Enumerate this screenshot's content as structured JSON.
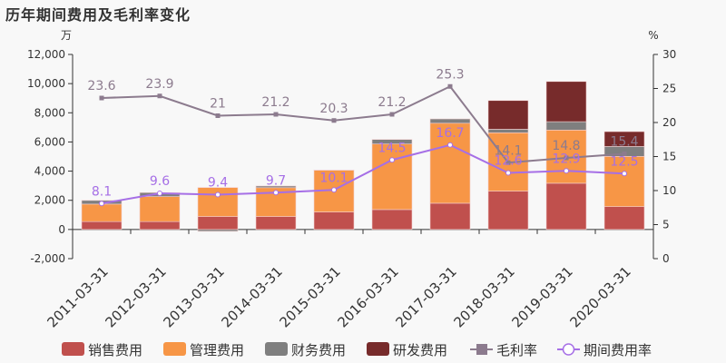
{
  "title": "历年期间费用及毛利率变化",
  "chart_data": {
    "type": "bar",
    "stacked": true,
    "categories": [
      "2011-03-31",
      "2012-03-31",
      "2013-03-31",
      "2014-03-31",
      "2015-03-31",
      "2016-03-31",
      "2017-03-31",
      "2018-03-31",
      "2019-03-31",
      "2020-03-31"
    ],
    "left_axis": {
      "unit": "万",
      "ylim": [
        -2000,
        12000
      ],
      "ticks": [
        "-2,000",
        "0",
        "2,000",
        "4,000",
        "6,000",
        "8,000",
        "10,000",
        "12,000"
      ],
      "tick_values": [
        -2000,
        0,
        2000,
        4000,
        6000,
        8000,
        10000,
        12000
      ]
    },
    "right_axis": {
      "unit": "%",
      "ylim": [
        0,
        30
      ],
      "ticks": [
        "0",
        "5",
        "10",
        "15",
        "20",
        "25",
        "30"
      ],
      "tick_values": [
        0,
        5,
        10,
        15,
        20,
        25,
        30
      ]
    },
    "series": [
      {
        "name": "销售费用",
        "type": "bar",
        "color": "#c0504d",
        "values": [
          540,
          540,
          890,
          890,
          1200,
          1365,
          1800,
          2630,
          3170,
          1570
        ]
      },
      {
        "name": "管理费用",
        "type": "bar",
        "color": "#f79646",
        "values": [
          1200,
          1715,
          1985,
          1975,
          2855,
          4495,
          5485,
          4000,
          3645,
          3440
        ]
      },
      {
        "name": "财务费用",
        "type": "bar",
        "color": "#7f7f7f",
        "values": [
          250,
          275,
          -125,
          115,
          20,
          310,
          295,
          245,
          575,
          685
        ]
      },
      {
        "name": "研发费用",
        "type": "bar",
        "color": "#772b2b",
        "values": [
          0,
          0,
          0,
          0,
          0,
          0,
          0,
          1965,
          2755,
          1015
        ]
      },
      {
        "name": "毛利率",
        "type": "line",
        "axis": "right",
        "color": "#8c7b8e",
        "marker": "square",
        "values": [
          23.6,
          23.9,
          21,
          21.2,
          20.3,
          21.2,
          25.3,
          14.1,
          14.8,
          15.4
        ]
      },
      {
        "name": "期间费用率",
        "type": "line",
        "axis": "right",
        "color": "#a66fe6",
        "marker": "circle",
        "values": [
          8.1,
          9.6,
          9.4,
          9.7,
          10.1,
          14.5,
          16.7,
          12.6,
          12.9,
          12.5
        ]
      }
    ],
    "grid": false,
    "legend": "bottom"
  }
}
